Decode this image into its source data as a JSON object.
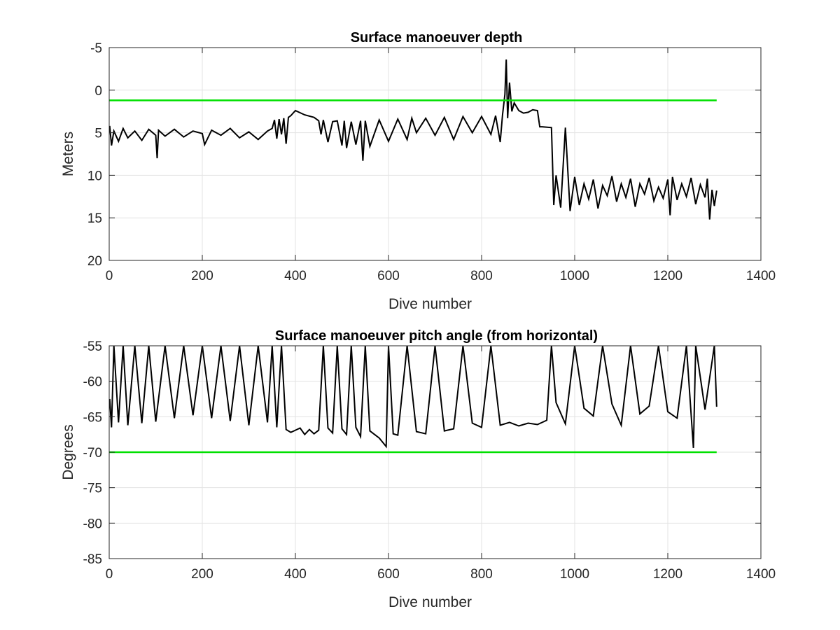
{
  "chart_data": [
    {
      "type": "line",
      "title": "Surface manoeuver depth",
      "xlabel": "Dive number",
      "ylabel": "Meters",
      "xlim": [
        0,
        1400
      ],
      "ylim": [
        -5,
        20
      ],
      "y_reversed": true,
      "grid": true,
      "xticks": [
        0,
        200,
        400,
        600,
        800,
        1000,
        1200,
        1400
      ],
      "yticks": [
        -5,
        0,
        5,
        10,
        15,
        20
      ],
      "xtick_labels": [
        "0",
        "200",
        "400",
        "600",
        "800",
        "1000",
        "1200",
        "1400"
      ],
      "ytick_labels": [
        "-5",
        "0",
        "5",
        "10",
        "15",
        "20"
      ],
      "series": [
        {
          "color": "#000000",
          "x": [
            1,
            5,
            10,
            20,
            30,
            40,
            55,
            70,
            85,
            100,
            103,
            106,
            120,
            140,
            160,
            180,
            200,
            205,
            220,
            240,
            260,
            280,
            300,
            320,
            340,
            350,
            355,
            360,
            365,
            370,
            375,
            380,
            385,
            390,
            400,
            420,
            440,
            450,
            455,
            460,
            470,
            480,
            490,
            500,
            505,
            510,
            520,
            530,
            540,
            545,
            550,
            560,
            580,
            600,
            620,
            640,
            650,
            660,
            680,
            700,
            720,
            740,
            760,
            780,
            800,
            820,
            830,
            840,
            845,
            850,
            853,
            856,
            860,
            865,
            870,
            880,
            890,
            900,
            910,
            920,
            925,
            930,
            950,
            955,
            960,
            970,
            980,
            990,
            1000,
            1010,
            1020,
            1030,
            1040,
            1050,
            1060,
            1070,
            1080,
            1090,
            1100,
            1110,
            1120,
            1130,
            1140,
            1150,
            1160,
            1170,
            1180,
            1190,
            1200,
            1205,
            1210,
            1220,
            1230,
            1240,
            1250,
            1260,
            1270,
            1280,
            1285,
            1290,
            1295,
            1300,
            1305
          ],
          "y": [
            4.2,
            6.5,
            4.8,
            6.0,
            4.5,
            5.6,
            4.8,
            5.9,
            4.6,
            5.3,
            8.0,
            4.7,
            5.4,
            4.6,
            5.5,
            4.8,
            5.1,
            6.4,
            4.7,
            5.3,
            4.5,
            5.6,
            4.9,
            5.8,
            4.8,
            4.5,
            3.5,
            5.7,
            3.4,
            5.2,
            3.3,
            6.3,
            3.2,
            3.0,
            2.4,
            2.9,
            3.2,
            3.6,
            5.2,
            3.5,
            6.1,
            3.7,
            3.6,
            6.5,
            3.6,
            6.8,
            3.7,
            6.4,
            3.6,
            8.3,
            3.6,
            6.6,
            3.5,
            6.0,
            3.4,
            5.8,
            3.3,
            5.0,
            3.3,
            5.3,
            3.2,
            5.8,
            3.1,
            5.0,
            3.1,
            5.2,
            3.0,
            6.1,
            2.9,
            0.5,
            -3.6,
            3.3,
            -0.9,
            2.5,
            1.5,
            2.4,
            2.7,
            2.6,
            2.3,
            2.4,
            4.3,
            4.3,
            4.4,
            13.5,
            10.0,
            13.8,
            4.4,
            14.2,
            10.2,
            13.5,
            11.0,
            12.8,
            10.5,
            13.9,
            11.2,
            12.4,
            10.1,
            13.1,
            11.0,
            12.6,
            10.4,
            13.7,
            11.0,
            12.2,
            10.3,
            13.0,
            11.4,
            12.7,
            10.5,
            14.7,
            10.2,
            12.9,
            11.0,
            12.5,
            10.3,
            13.4,
            11.1,
            12.6,
            10.4,
            15.2,
            11.7,
            13.6,
            11.8
          ]
        },
        {
          "color": "#00e000",
          "x": [
            0,
            1305
          ],
          "y": [
            1.2,
            1.2
          ]
        }
      ]
    },
    {
      "type": "line",
      "title": "Surface manoeuver pitch angle (from horizontal)",
      "xlabel": "Dive number",
      "ylabel": "Degrees",
      "xlim": [
        0,
        1400
      ],
      "ylim": [
        -85,
        -55
      ],
      "grid": true,
      "xticks": [
        0,
        200,
        400,
        600,
        800,
        1000,
        1200,
        1400
      ],
      "yticks": [
        -85,
        -80,
        -75,
        -70,
        -65,
        -60,
        -55
      ],
      "xtick_labels": [
        "0",
        "200",
        "400",
        "600",
        "800",
        "1000",
        "1200",
        "1400"
      ],
      "ytick_labels": [
        "-85",
        "-80",
        "-75",
        "-70",
        "-65",
        "-60",
        "-55"
      ],
      "series": [
        {
          "color": "#000000",
          "x": [
            1,
            5,
            10,
            20,
            30,
            40,
            55,
            70,
            85,
            100,
            120,
            140,
            160,
            180,
            200,
            220,
            240,
            260,
            280,
            300,
            320,
            340,
            350,
            360,
            370,
            380,
            390,
            400,
            410,
            420,
            430,
            440,
            450,
            460,
            470,
            480,
            490,
            500,
            510,
            520,
            530,
            540,
            550,
            560,
            580,
            595,
            600,
            610,
            620,
            640,
            660,
            680,
            700,
            720,
            740,
            760,
            780,
            800,
            820,
            840,
            860,
            880,
            900,
            920,
            940,
            950,
            960,
            980,
            1000,
            1020,
            1040,
            1060,
            1080,
            1100,
            1120,
            1140,
            1160,
            1180,
            1200,
            1220,
            1240,
            1255,
            1260,
            1280,
            1300,
            1305
          ],
          "y": [
            -62.5,
            -66.5,
            -55.0,
            -65.8,
            -55.0,
            -66.2,
            -55.0,
            -65.9,
            -55.0,
            -65.7,
            -55.0,
            -65.2,
            -55.0,
            -64.8,
            -55.0,
            -65.2,
            -55.0,
            -65.6,
            -55.0,
            -66.2,
            -55.0,
            -65.8,
            -55.0,
            -66.5,
            -55.0,
            -66.8,
            -67.2,
            -66.9,
            -66.6,
            -67.5,
            -66.8,
            -67.4,
            -66.9,
            -55.0,
            -66.6,
            -67.3,
            -55.0,
            -66.7,
            -67.5,
            -55.0,
            -66.5,
            -67.8,
            -55.0,
            -67.0,
            -68.0,
            -69.2,
            -55.0,
            -67.4,
            -67.6,
            -55.0,
            -67.1,
            -67.4,
            -55.0,
            -67.0,
            -66.7,
            -55.0,
            -65.9,
            -66.5,
            -55.0,
            -66.2,
            -65.8,
            -66.3,
            -65.9,
            -66.1,
            -65.5,
            -55.0,
            -63.0,
            -66.0,
            -55.0,
            -63.8,
            -64.9,
            -55.0,
            -63.2,
            -66.2,
            -55.0,
            -64.6,
            -63.5,
            -55.0,
            -64.3,
            -65.2,
            -55.0,
            -69.4,
            -55.0,
            -64.0,
            -55.0,
            -63.6
          ]
        },
        {
          "color": "#00e000",
          "x": [
            0,
            1305
          ],
          "y": [
            -70.0,
            -70.0
          ]
        }
      ]
    }
  ]
}
